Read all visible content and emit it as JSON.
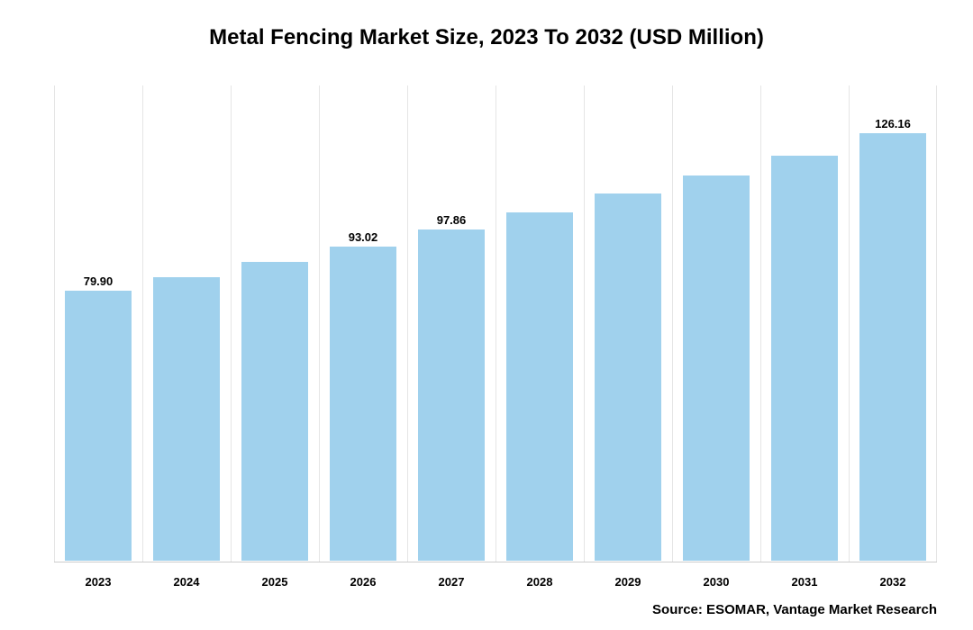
{
  "chart": {
    "type": "bar",
    "title": "Metal Fencing Market Size, 2023 To 2032 (USD Million)",
    "title_fontsize": 24,
    "title_color": "#000000",
    "background_color": "#ffffff",
    "bar_color": "#a0d1ed",
    "bar_border_color": "#ffffff",
    "grid_color": "#e5e5e5",
    "axis_line_color": "#cccccc",
    "bar_width_pct": 78,
    "ylim": [
      0,
      140
    ],
    "categories": [
      "2023",
      "2024",
      "2025",
      "2026",
      "2027",
      "2028",
      "2029",
      "2030",
      "2031",
      "2032"
    ],
    "values": [
      79.9,
      83.95,
      88.29,
      93.02,
      97.86,
      103.0,
      108.4,
      113.86,
      119.74,
      126.16
    ],
    "value_labels": [
      "79.90",
      "",
      "",
      "93.02",
      "97.86",
      "",
      "",
      "",
      "",
      "126.16"
    ],
    "label_fontsize": 13,
    "xaxis_fontsize": 13,
    "xaxis_fontweight": "bold",
    "source_text": "Source: ESOMAR, Vantage Market Research",
    "source_fontsize": 15
  }
}
